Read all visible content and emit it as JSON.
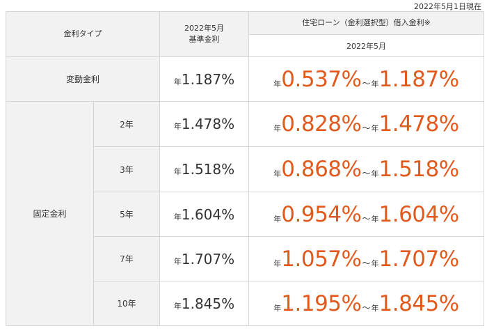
{
  "as_of": "2022年5月1日現在",
  "colors": {
    "accent": "#e05a1e",
    "header_bg": "#f2f2f2",
    "border": "#d6d6d6"
  },
  "header": {
    "rate_type": "金利タイプ",
    "base_rate_title": "2022年5月\n基準金利",
    "loan_rate_title": "住宅ローン（金利選択型）借入金利※",
    "loan_rate_month": "2022年5月"
  },
  "year_prefix": "年",
  "tilde": "～",
  "variable": {
    "label": "変動金利",
    "base": "1.187%",
    "min": "0.537%",
    "max": "1.187%"
  },
  "fixed": {
    "label": "固定金利",
    "rows": [
      {
        "term": "2年",
        "base": "1.478%",
        "min": "0.828%",
        "max": "1.478%"
      },
      {
        "term": "3年",
        "base": "1.518%",
        "min": "0.868%",
        "max": "1.518%"
      },
      {
        "term": "5年",
        "base": "1.604%",
        "min": "0.954%",
        "max": "1.604%"
      },
      {
        "term": "7年",
        "base": "1.707%",
        "min": "1.057%",
        "max": "1.707%"
      },
      {
        "term": "10年",
        "base": "1.845%",
        "min": "1.195%",
        "max": "1.845%"
      }
    ]
  }
}
